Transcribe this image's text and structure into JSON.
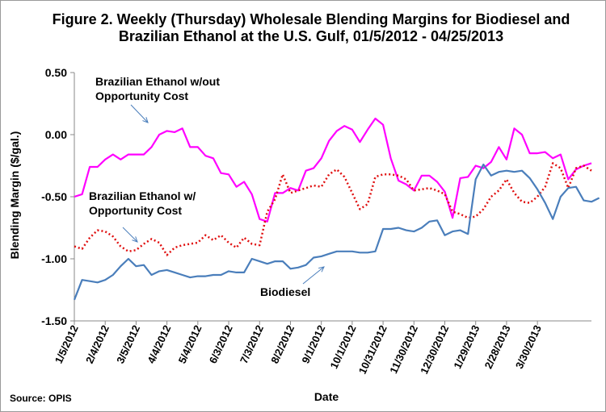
{
  "chart_data": {
    "type": "line",
    "title": "Figure 2. Weekly (Thursday) Wholesale Blending Margins for Biodiesel and Brazilian Ethanol at the U.S. Gulf, 01/5/2012 - 04/25/2013",
    "xlabel": "Date",
    "ylabel": "Blending Margin ($/gal.)",
    "ylim": [
      -1.5,
      0.5
    ],
    "y_ticks": [
      "0.50",
      "0.00",
      "-0.50",
      "-1.00",
      "-1.50"
    ],
    "x_tick_labels": [
      "1/5/2012",
      "2/4/2012",
      "3/5/2012",
      "4/4/2012",
      "5/4/2012",
      "6/3/2012",
      "7/3/2012",
      "8/2/2012",
      "9/1/2012",
      "10/1/2012",
      "10/31/2012",
      "11/30/2012",
      "12/30/2012",
      "1/29/2013",
      "2/28/2013",
      "3/30/2013"
    ],
    "grid": false,
    "colors": {
      "no_oc": "#ff00ff",
      "with_oc": "#e01010",
      "biodiesel": "#4a7ebb"
    },
    "annotations": {
      "no_oc": "Brazilian Ethanol w/out\nOpportunity Cost",
      "with_oc": "Brazilian Ethanol w/\nOpportunity Cost",
      "biodiesel": "Biodiesel"
    },
    "source": "Source: OPIS",
    "series": [
      {
        "key": "no_oc",
        "style": "solid",
        "values": [
          -0.5,
          -0.48,
          -0.26,
          -0.26,
          -0.2,
          -0.16,
          -0.2,
          -0.16,
          -0.16,
          -0.16,
          -0.1,
          0.0,
          0.03,
          0.02,
          0.05,
          -0.1,
          -0.1,
          -0.17,
          -0.19,
          -0.31,
          -0.32,
          -0.42,
          -0.38,
          -0.48,
          -0.68,
          -0.7,
          -0.47,
          -0.47,
          -0.43,
          -0.45,
          -0.29,
          -0.27,
          -0.19,
          -0.05,
          0.03,
          0.07,
          0.04,
          -0.06,
          0.04,
          0.13,
          0.08,
          -0.19,
          -0.37,
          -0.4,
          -0.45,
          -0.33,
          -0.33,
          -0.38,
          -0.46,
          -0.67,
          -0.35,
          -0.34,
          -0.25,
          -0.27,
          -0.22,
          -0.1,
          -0.2,
          0.05,
          0.0,
          -0.15,
          -0.15,
          -0.14,
          -0.19,
          -0.16,
          -0.36,
          -0.28,
          -0.25,
          -0.23
        ]
      },
      {
        "key": "with_oc",
        "style": "dotted",
        "values": [
          -0.9,
          -0.92,
          -0.83,
          -0.77,
          -0.78,
          -0.82,
          -0.9,
          -0.94,
          -0.93,
          -0.88,
          -0.84,
          -0.87,
          -0.97,
          -0.91,
          -0.89,
          -0.88,
          -0.87,
          -0.81,
          -0.85,
          -0.81,
          -0.87,
          -0.91,
          -0.83,
          -0.88,
          -0.89,
          -0.62,
          -0.52,
          -0.32,
          -0.47,
          -0.45,
          -0.43,
          -0.41,
          -0.42,
          -0.32,
          -0.28,
          -0.34,
          -0.47,
          -0.6,
          -0.56,
          -0.34,
          -0.32,
          -0.32,
          -0.33,
          -0.36,
          -0.45,
          -0.44,
          -0.43,
          -0.45,
          -0.48,
          -0.62,
          -0.64,
          -0.67,
          -0.66,
          -0.6,
          -0.5,
          -0.45,
          -0.36,
          -0.47,
          -0.54,
          -0.55,
          -0.5,
          -0.42,
          -0.23,
          -0.27,
          -0.43,
          -0.27,
          -0.25,
          -0.29
        ]
      },
      {
        "key": "biodiesel",
        "style": "solid",
        "values": [
          -1.33,
          -1.17,
          -1.18,
          -1.19,
          -1.17,
          -1.13,
          -1.06,
          -1.0,
          -1.06,
          -1.05,
          -1.13,
          -1.1,
          -1.09,
          -1.11,
          -1.13,
          -1.15,
          -1.14,
          -1.14,
          -1.13,
          -1.13,
          -1.1,
          -1.11,
          -1.11,
          -1.0,
          -1.02,
          -1.04,
          -1.02,
          -1.02,
          -1.08,
          -1.07,
          -1.05,
          -0.99,
          -0.98,
          -0.96,
          -0.94,
          -0.94,
          -0.94,
          -0.95,
          -0.95,
          -0.94,
          -0.76,
          -0.76,
          -0.75,
          -0.77,
          -0.78,
          -0.75,
          -0.7,
          -0.69,
          -0.81,
          -0.78,
          -0.77,
          -0.8,
          -0.36,
          -0.24,
          -0.33,
          -0.3,
          -0.29,
          -0.3,
          -0.29,
          -0.35,
          -0.44,
          -0.55,
          -0.68,
          -0.5,
          -0.43,
          -0.42,
          -0.53,
          -0.54,
          -0.51
        ]
      }
    ]
  }
}
